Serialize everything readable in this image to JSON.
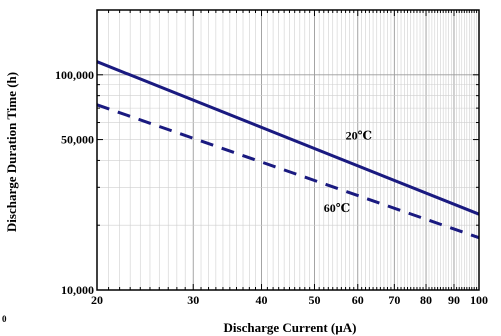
{
  "chart_data": {
    "type": "line",
    "title": "",
    "xlabel": "Discharge Current  (µA)",
    "ylabel": "Discharge Duration Time (h)",
    "x_scale": "log",
    "y_scale": "log",
    "xlim": [
      20,
      100
    ],
    "ylim": [
      10000,
      200000
    ],
    "grid": true,
    "x_ticks": [
      {
        "value": 20,
        "label": "20"
      },
      {
        "value": 30,
        "label": "30"
      },
      {
        "value": 40,
        "label": "40"
      },
      {
        "value": 50,
        "label": "50"
      },
      {
        "value": 60,
        "label": "60"
      },
      {
        "value": 70,
        "label": "70"
      },
      {
        "value": 80,
        "label": "80"
      },
      {
        "value": 90,
        "label": "90"
      },
      {
        "value": 100,
        "label": "100"
      }
    ],
    "y_ticks": [
      {
        "value": 10000,
        "label": "10,000"
      },
      {
        "value": 50000,
        "label": "50,000"
      },
      {
        "value": 100000,
        "label": "100,000"
      }
    ],
    "series": [
      {
        "name": "20℃",
        "style": "solid",
        "color": "#1a1a80",
        "x": [
          20,
          100
        ],
        "y": [
          115000,
          22500
        ],
        "label_at": [
          57,
          50000
        ]
      },
      {
        "name": "60℃",
        "style": "dashed",
        "color": "#1a1a80",
        "x": [
          20,
          100
        ],
        "y": [
          72500,
          17500
        ],
        "label_at": [
          52,
          23000
        ]
      }
    ],
    "corner_label": "0"
  }
}
